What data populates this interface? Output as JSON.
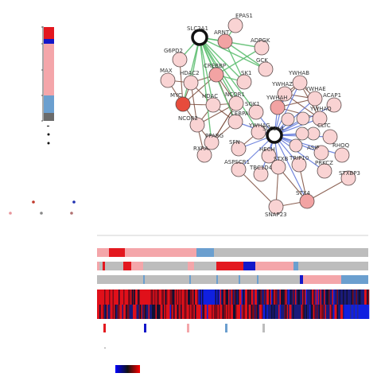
{
  "colors": {
    "node_red": "#e74c3c",
    "node_light": "#f9d3d3",
    "node_mid": "#f2a3a3",
    "hub_border": "#111111",
    "edge_green": "#5fbf72",
    "edge_blue": "#5a72d8",
    "edge_brown": "#7a4a3a",
    "track_red": "#e3181f",
    "track_blue": "#1217c9",
    "track_pink": "#f4a6aa",
    "track_steel": "#6b9fcf",
    "track_gray": "#bdbdbd"
  },
  "legend_left": {
    "segments": [
      "red",
      "blue",
      "pink",
      "steel",
      "gray"
    ]
  },
  "network": {
    "hubs": [
      "SLC2A1",
      "SLC2A4"
    ],
    "nodes": [
      {
        "label": "EPAS1",
        "color": "light"
      },
      {
        "label": "SLC2A1",
        "color": "hub"
      },
      {
        "label": "ARNT",
        "color": "mid"
      },
      {
        "label": "ADPGK",
        "color": "light"
      },
      {
        "label": "G6PD2",
        "color": "light"
      },
      {
        "label": "GCK",
        "color": "light"
      },
      {
        "label": "CREBBP",
        "color": "mid"
      },
      {
        "label": "MAX",
        "color": "light"
      },
      {
        "label": "HDAC2",
        "color": "light"
      },
      {
        "label": "SK1",
        "color": "light"
      },
      {
        "label": "YWHAB",
        "color": "light"
      },
      {
        "label": "YWHAZ",
        "color": "light"
      },
      {
        "label": "YWHAH",
        "color": "mid"
      },
      {
        "label": "YWHAE",
        "color": "light"
      },
      {
        "label": "ACAP1",
        "color": "light"
      },
      {
        "label": "MYC",
        "color": "red"
      },
      {
        "label": "HDAC",
        "color": "light"
      },
      {
        "label": "NCOR1",
        "color": "light"
      },
      {
        "label": "SGK1",
        "color": "light"
      },
      {
        "label": "YWHAQ",
        "color": "light"
      },
      {
        "label": "NCOR2",
        "color": "light"
      },
      {
        "label": "CEBPA",
        "color": "light"
      },
      {
        "label": "YWHAG",
        "color": "light"
      },
      {
        "label": "SLC2A4",
        "color": "hub"
      },
      {
        "label": "CLTC",
        "color": "light"
      },
      {
        "label": "PPARG",
        "color": "light"
      },
      {
        "label": "RXRA",
        "color": "light"
      },
      {
        "label": "SFN",
        "color": "light"
      },
      {
        "label": "HECH",
        "color": "light"
      },
      {
        "label": "ASIP",
        "color": "light"
      },
      {
        "label": "RHOQ",
        "color": "light"
      },
      {
        "label": "ASPSCR1",
        "color": "light"
      },
      {
        "label": "TBC1D4",
        "color": "light"
      },
      {
        "label": "STXB",
        "color": "light"
      },
      {
        "label": "TRIP10",
        "color": "light"
      },
      {
        "label": "PRKCZ",
        "color": "light"
      },
      {
        "label": "STXBP3",
        "color": "light"
      },
      {
        "label": "STX4",
        "color": "mid"
      },
      {
        "label": "SNAP23",
        "color": "light"
      }
    ]
  },
  "legend_dots": [
    {
      "color": "red"
    },
    {
      "color": "blue"
    },
    {
      "color": "pink"
    },
    {
      "color": "gray"
    },
    {
      "color": "pink"
    }
  ],
  "tracks": {
    "rows": 5,
    "heat_rows": 2
  },
  "bottom_legend": {
    "swatches": [
      "red",
      "blue",
      "pink",
      "steel",
      "gray"
    ]
  }
}
